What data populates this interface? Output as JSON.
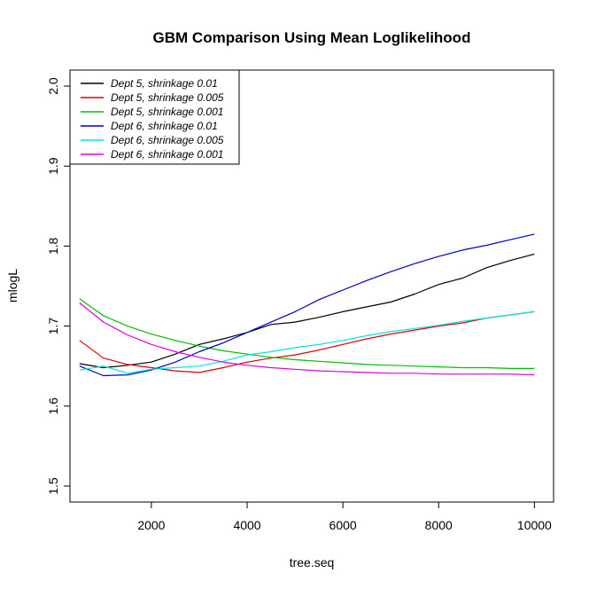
{
  "chart_data": {
    "type": "line",
    "title": "GBM Comparison Using Mean Loglikelihood",
    "xlabel": "tree.seq",
    "ylabel": "mlogL",
    "xlim": [
      300,
      10400
    ],
    "ylim": [
      1.48,
      2.02
    ],
    "x_ticks": [
      2000,
      4000,
      6000,
      8000,
      10000
    ],
    "y_ticks": [
      1.5,
      1.6,
      1.7,
      1.8,
      1.9,
      2.0
    ],
    "x_tick_labels": [
      "2000",
      "4000",
      "6000",
      "8000",
      "10000"
    ],
    "y_tick_labels": [
      "1.5",
      "1.6",
      "1.7",
      "1.8",
      "1.9",
      "2.0"
    ],
    "grid": false,
    "legend_position": "top-left",
    "x": [
      500,
      1000,
      1500,
      2000,
      2500,
      3000,
      3500,
      4000,
      4500,
      5000,
      5500,
      6000,
      6500,
      7000,
      7500,
      8000,
      8500,
      9000,
      9500,
      10000
    ],
    "series": [
      {
        "name": "Dept 5, shrinkage 0.01",
        "color": "#000000",
        "values": [
          1.653,
          1.648,
          1.651,
          1.655,
          1.665,
          1.677,
          1.684,
          1.692,
          1.702,
          1.705,
          1.711,
          1.718,
          1.724,
          1.73,
          1.74,
          1.752,
          1.76,
          1.773,
          1.782,
          1.79
        ]
      },
      {
        "name": "Dept 5, shrinkage 0.005",
        "color": "#DF0000",
        "values": [
          1.682,
          1.66,
          1.652,
          1.648,
          1.644,
          1.642,
          1.648,
          1.655,
          1.66,
          1.664,
          1.67,
          1.677,
          1.684,
          1.69,
          1.695,
          1.7,
          1.704,
          1.71,
          1.714,
          1.718
        ]
      },
      {
        "name": "Dept 5, shrinkage 0.001",
        "color": "#00C000",
        "values": [
          1.734,
          1.713,
          1.7,
          1.69,
          1.682,
          1.675,
          1.669,
          1.665,
          1.661,
          1.658,
          1.656,
          1.654,
          1.652,
          1.651,
          1.65,
          1.649,
          1.648,
          1.648,
          1.647,
          1.647
        ]
      },
      {
        "name": "Dept 6, shrinkage 0.01",
        "color": "#0000C8",
        "values": [
          1.65,
          1.638,
          1.639,
          1.645,
          1.655,
          1.668,
          1.679,
          1.692,
          1.705,
          1.718,
          1.733,
          1.745,
          1.757,
          1.768,
          1.778,
          1.787,
          1.795,
          1.801,
          1.808,
          1.815
        ]
      },
      {
        "name": "Dept 6, shrinkage 0.005",
        "color": "#00E5E5",
        "values": [
          1.645,
          1.65,
          1.641,
          1.646,
          1.648,
          1.65,
          1.656,
          1.664,
          1.668,
          1.673,
          1.677,
          1.682,
          1.688,
          1.693,
          1.697,
          1.701,
          1.706,
          1.71,
          1.714,
          1.718
        ]
      },
      {
        "name": "Dept 6, shrinkage 0.001",
        "color": "#DF00DF",
        "values": [
          1.729,
          1.705,
          1.689,
          1.677,
          1.668,
          1.661,
          1.655,
          1.651,
          1.648,
          1.646,
          1.644,
          1.643,
          1.642,
          1.641,
          1.641,
          1.64,
          1.64,
          1.64,
          1.64,
          1.639
        ]
      }
    ]
  }
}
